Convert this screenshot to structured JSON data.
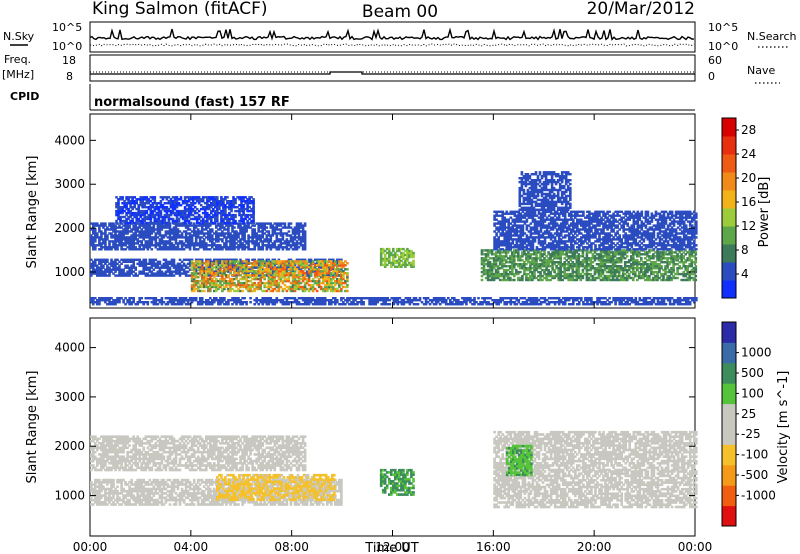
{
  "header": {
    "station": "King Salmon (fitACF)",
    "beam": "Beam 00",
    "date": "20/Mar/2012"
  },
  "side_labels": {
    "nsky": "N.Sky",
    "freq_line1": "Freq.",
    "freq_line2": "[MHz]",
    "cpid": "CPID",
    "nsearch": "N.Search",
    "nave": "Nave"
  },
  "nsky_axis": {
    "top": "10^5",
    "bottom": "10^0"
  },
  "freq_axis": {
    "top": "18",
    "bottom": "8"
  },
  "nave_axis": {
    "top": "60",
    "bottom": "0"
  },
  "cpid_text": "normalsound (fast) 157 RF",
  "colors": {
    "power_scale": [
      "#1030ff",
      "#2a4cc0",
      "#3c7a5a",
      "#5ea64a",
      "#9ccc3c",
      "#f2b31a",
      "#f08a1a",
      "#ef5a14",
      "#e83010",
      "#d90000"
    ],
    "velocity_scale": [
      "#e01010",
      "#f05e10",
      "#f49a18",
      "#f6c02a",
      "#c8c8c0",
      "#c8c8c0",
      "#56c43a",
      "#3c8c5c",
      "#3a6aa8",
      "#2b2ba8"
    ]
  },
  "chart_data": [
    {
      "type": "heatmap",
      "title": "Power",
      "xlabel": "Time UT",
      "ylabel": "Slant Range [km]",
      "x_ticks": [
        "00:00",
        "04:00",
        "08:00",
        "12:00",
        "16:00",
        "20:00",
        "00:00"
      ],
      "x_range_hours": [
        0,
        24
      ],
      "y_ticks": [
        1000,
        2000,
        3000,
        4000
      ],
      "y_range_km": [
        180,
        4600
      ],
      "colorbar": {
        "label": "Power [dB]",
        "ticks": [
          4,
          8,
          12,
          16,
          20,
          24,
          28
        ],
        "range": [
          0,
          30
        ]
      },
      "bands": [
        {
          "t0": 0.0,
          "t1": 10.0,
          "r0": 900,
          "r1": 1300,
          "v0": 3,
          "v1": 6
        },
        {
          "t0": 0.0,
          "t1": 8.5,
          "r0": 1500,
          "r1": 2100,
          "v0": 3,
          "v1": 5
        },
        {
          "t0": 1.0,
          "t1": 6.5,
          "r0": 2100,
          "r1": 2700,
          "v0": 2,
          "v1": 4
        },
        {
          "t0": 4.0,
          "t1": 10.2,
          "r0": 550,
          "r1": 1250,
          "v0": 8,
          "v1": 24
        },
        {
          "t0": 11.5,
          "t1": 12.8,
          "r0": 1100,
          "r1": 1550,
          "v0": 10,
          "v1": 14
        },
        {
          "t0": 15.5,
          "t1": 24.0,
          "r0": 800,
          "r1": 1500,
          "v0": 6,
          "v1": 12
        },
        {
          "t0": 16.0,
          "t1": 24.0,
          "r0": 1500,
          "r1": 2400,
          "v0": 3,
          "v1": 6
        },
        {
          "t0": 17.0,
          "t1": 19.0,
          "r0": 2400,
          "r1": 3300,
          "v0": 3,
          "v1": 5
        },
        {
          "t0": 0.0,
          "t1": 24.0,
          "r0": 250,
          "r1": 400,
          "v0": 3,
          "v1": 5
        }
      ]
    },
    {
      "type": "heatmap",
      "title": "Velocity",
      "xlabel": "Time UT",
      "ylabel": "Slant Range [km]",
      "x_ticks": [
        "00:00",
        "04:00",
        "08:00",
        "12:00",
        "16:00",
        "20:00",
        "00:00"
      ],
      "x_range_hours": [
        0,
        24
      ],
      "y_ticks": [
        1000,
        2000,
        3000,
        4000
      ],
      "y_range_km": [
        180,
        4600
      ],
      "colorbar": {
        "label": "Velocity [m s^-1]",
        "ticks": [
          -1000,
          -500,
          -100,
          -25,
          25,
          100,
          500,
          1000
        ],
        "range": [
          -1000,
          1000
        ]
      },
      "bands": [
        {
          "t0": 0.0,
          "t1": 10.0,
          "r0": 800,
          "r1": 1300,
          "v0": -15,
          "v1": 15
        },
        {
          "t0": 0.0,
          "t1": 8.5,
          "r0": 1500,
          "r1": 2200,
          "v0": -15,
          "v1": 15
        },
        {
          "t0": 5.0,
          "t1": 9.7,
          "r0": 900,
          "r1": 1400,
          "v0": -180,
          "v1": -80
        },
        {
          "t0": 11.5,
          "t1": 12.8,
          "r0": 1000,
          "r1": 1500,
          "v0": 80,
          "v1": 140
        },
        {
          "t0": 16.0,
          "t1": 24.0,
          "r0": 750,
          "r1": 1500,
          "v0": -15,
          "v1": 15
        },
        {
          "t0": 16.0,
          "t1": 24.0,
          "r0": 1500,
          "r1": 2300,
          "v0": -15,
          "v1": 15
        },
        {
          "t0": 16.5,
          "t1": 17.5,
          "r0": 1400,
          "r1": 2000,
          "v0": 40,
          "v1": 120
        }
      ]
    }
  ]
}
